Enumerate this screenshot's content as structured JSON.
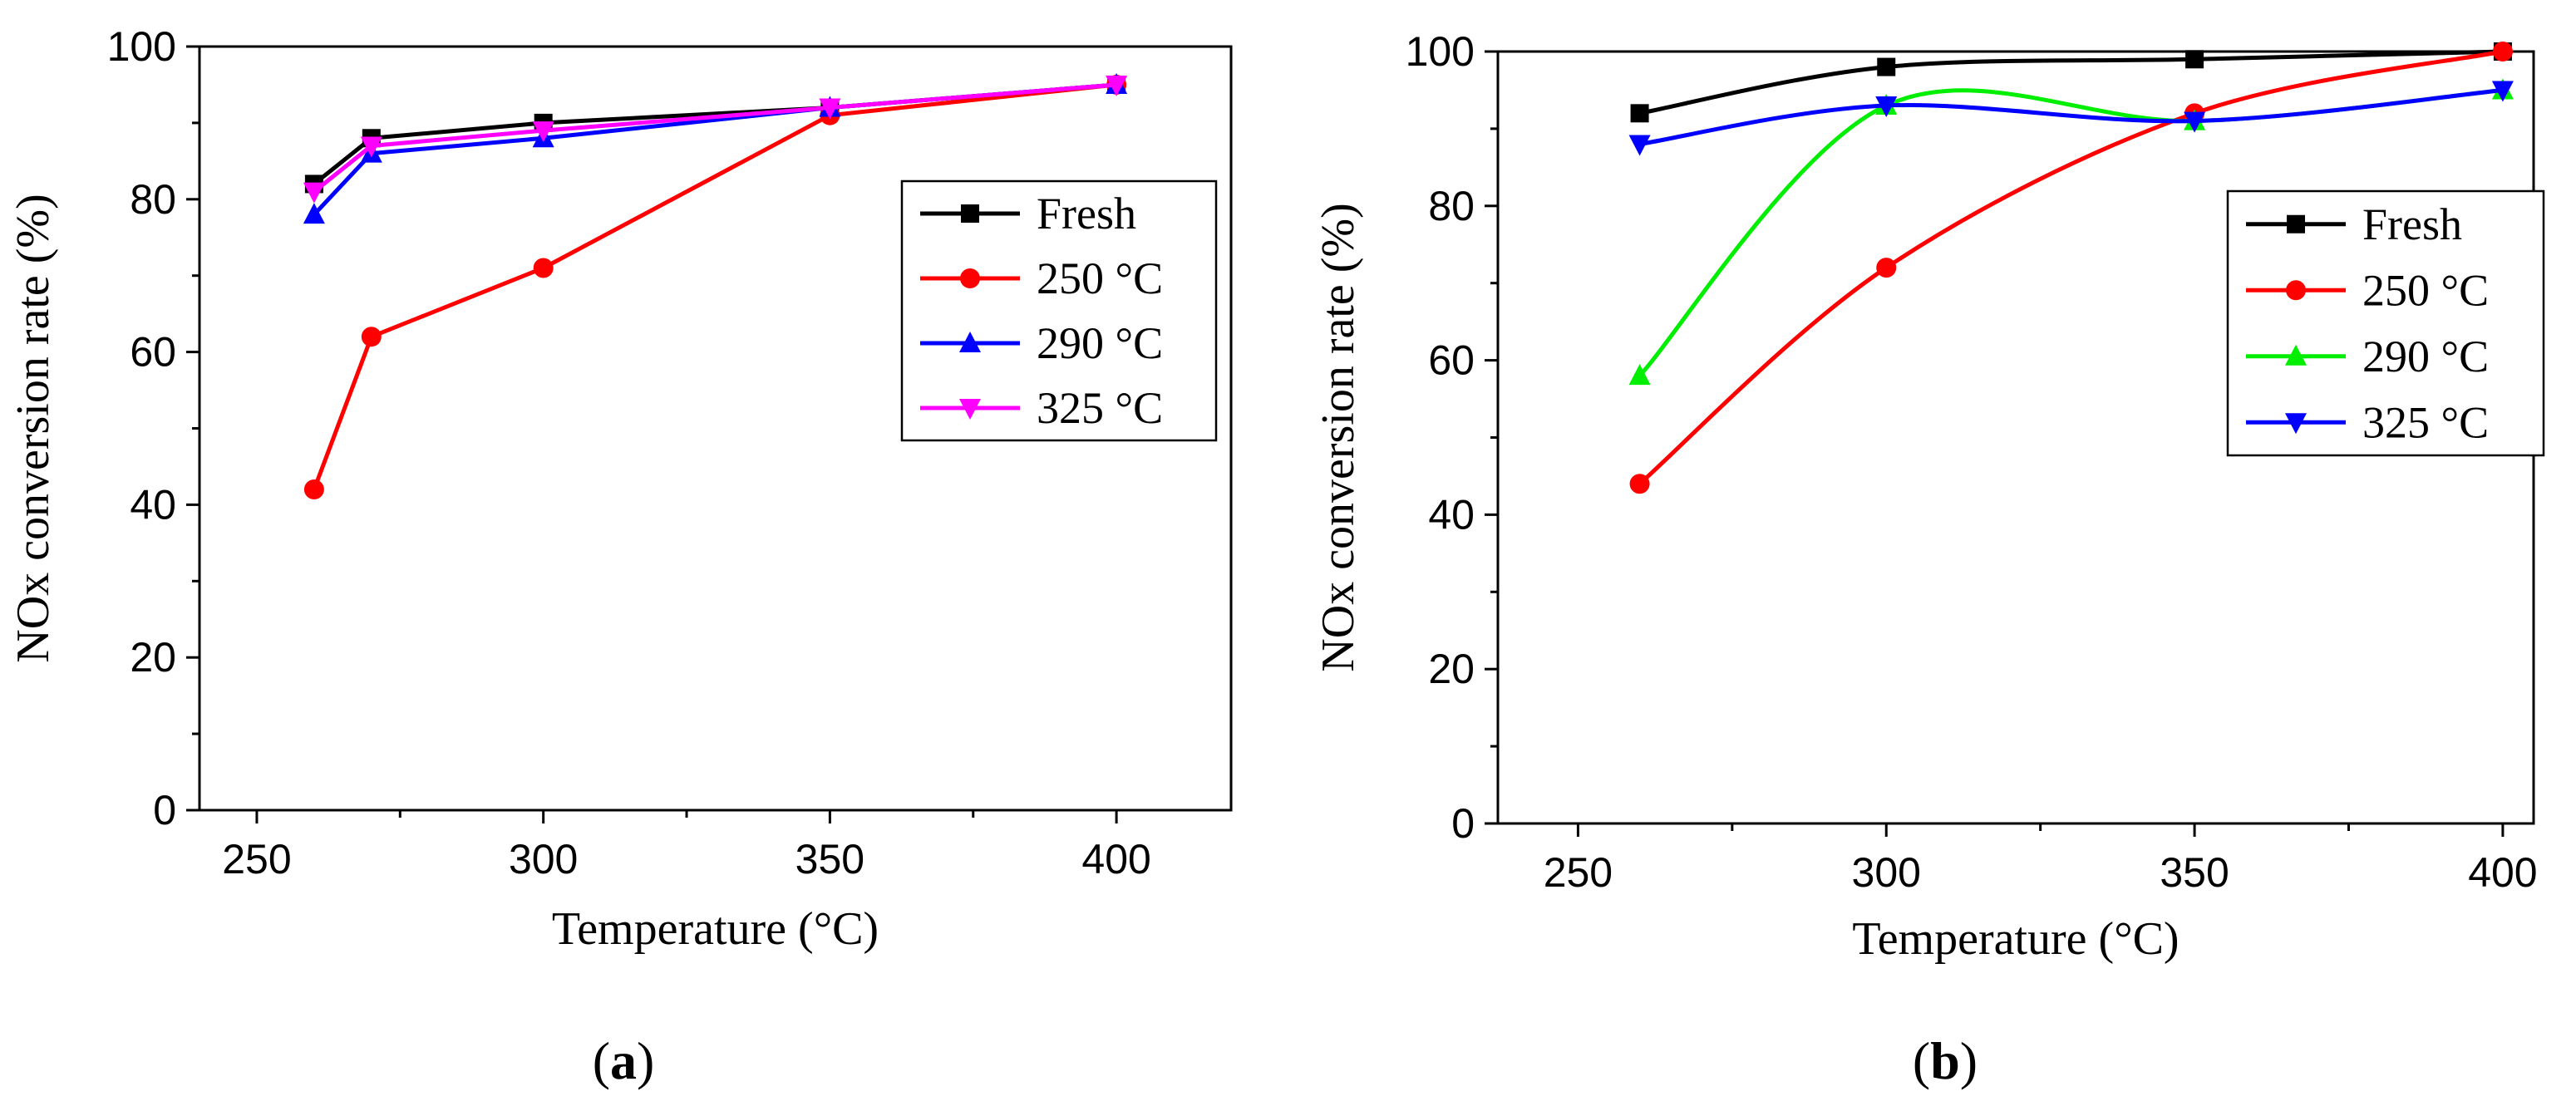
{
  "chart_data": [
    {
      "type": "line",
      "panel_label": "a",
      "xlabel": "Temperature (°C)",
      "ylabel": "NOx conversion rate (%)",
      "xlim": [
        240,
        420
      ],
      "ylim": [
        0,
        100
      ],
      "xticks": [
        250,
        300,
        350,
        400
      ],
      "yticks": [
        0,
        20,
        40,
        60,
        80,
        100
      ],
      "x": [
        260,
        270,
        300,
        350,
        400
      ],
      "legend_position": "right-middle",
      "smooth": false,
      "series": [
        {
          "name": "Fresh",
          "color": "#000000",
          "marker": "square",
          "values": [
            82,
            88,
            90,
            92,
            95
          ]
        },
        {
          "name": "250 °C",
          "color": "#ff0000",
          "marker": "circle",
          "values": [
            42,
            62,
            71,
            91,
            95
          ]
        },
        {
          "name": "290 °C",
          "color": "#0000ff",
          "marker": "triangle-up",
          "values": [
            78,
            86,
            88,
            92,
            95
          ]
        },
        {
          "name": "325 °C",
          "color": "#ff00ff",
          "marker": "triangle-down",
          "values": [
            81,
            87,
            89,
            92,
            95
          ]
        }
      ]
    },
    {
      "type": "line",
      "panel_label": "b",
      "xlabel": "Temperature (°C)",
      "ylabel": "NOx conversion rate (%)",
      "xlim": [
        237,
        405
      ],
      "ylim": [
        0,
        100
      ],
      "xticks": [
        250,
        300,
        350,
        400
      ],
      "yticks": [
        0,
        20,
        40,
        60,
        80,
        100
      ],
      "x": [
        260,
        300,
        350,
        400
      ],
      "legend_position": "right-middle",
      "smooth": true,
      "series": [
        {
          "name": "Fresh",
          "color": "#000000",
          "marker": "square",
          "values": [
            92,
            98,
            99,
            100
          ]
        },
        {
          "name": "250 °C",
          "color": "#ff0000",
          "marker": "circle",
          "values": [
            44,
            72,
            92,
            100
          ]
        },
        {
          "name": "290 °C",
          "color": "#00ee00",
          "marker": "triangle-up",
          "values": [
            58,
            93,
            91,
            95
          ]
        },
        {
          "name": "325 °C",
          "color": "#0000ff",
          "marker": "triangle-down",
          "values": [
            88,
            93,
            91,
            95
          ]
        }
      ]
    }
  ]
}
